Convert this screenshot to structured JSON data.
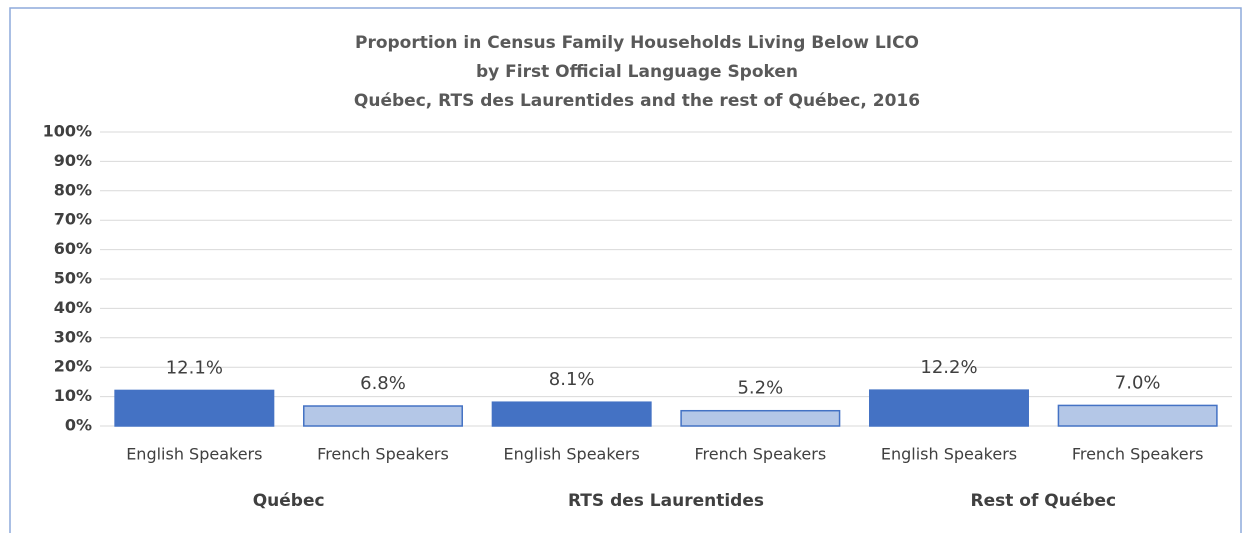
{
  "chart_data": {
    "type": "bar",
    "title": [
      "Proportion in Census Family Households Living Below LICO",
      "by First Official Language Spoken",
      "Québec, RTS des Laurentides and the rest of Québec, 2016"
    ],
    "categories": [
      "English Speakers",
      "French Speakers",
      "English Speakers",
      "French Speakers",
      "English Speakers",
      "French Speakers"
    ],
    "groups": [
      "Québec",
      "RTS des Laurentides",
      "Rest of Québec"
    ],
    "values": [
      12.1,
      6.8,
      8.1,
      5.2,
      12.2,
      7.0
    ],
    "value_labels": [
      "12.1%",
      "6.8%",
      "8.1%",
      "5.2%",
      "12.2%",
      "7.0%"
    ],
    "colors": [
      "#4472c4",
      "#b4c7e7",
      "#4472c4",
      "#b4c7e7",
      "#4472c4",
      "#b4c7e7"
    ],
    "ylim": [
      0,
      100
    ],
    "yticks": [
      {
        "value": 0,
        "label": "0%"
      },
      {
        "value": 10,
        "label": "10%"
      },
      {
        "value": 20,
        "label": "20%"
      },
      {
        "value": 30,
        "label": "30%"
      },
      {
        "value": 40,
        "label": "40%"
      },
      {
        "value": 50,
        "label": "50%"
      },
      {
        "value": 60,
        "label": "60%"
      },
      {
        "value": 70,
        "label": "70%"
      },
      {
        "value": 80,
        "label": "80%"
      },
      {
        "value": 90,
        "label": "90%"
      },
      {
        "value": 100,
        "label": "100%"
      }
    ],
    "grid": true
  }
}
